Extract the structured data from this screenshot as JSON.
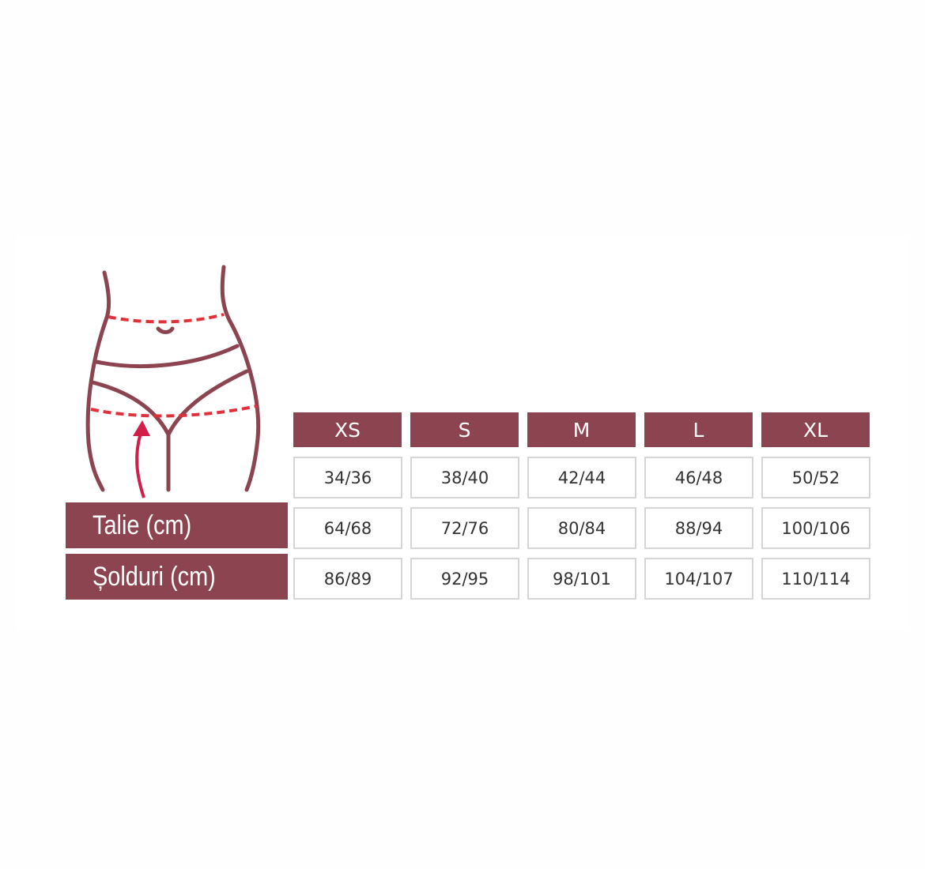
{
  "colors": {
    "accent": "#8b4450",
    "measure_line": "#e0303a",
    "arrow": "#d0204a"
  },
  "illustration": {
    "icon": "body-hips-measurement-icon"
  },
  "table": {
    "sizes": [
      "XS",
      "S",
      "M",
      "L",
      "XL"
    ],
    "rows": [
      {
        "label": "",
        "values": [
          "34/36",
          "38/40",
          "42/44",
          "46/48",
          "50/52"
        ]
      },
      {
        "label": "Talie (cm)",
        "values": [
          "64/68",
          "72/76",
          "80/84",
          "88/94",
          "100/106"
        ]
      },
      {
        "label": "Șolduri (cm)",
        "values": [
          "86/89",
          "92/95",
          "98/101",
          "104/107",
          "110/114"
        ]
      }
    ]
  }
}
